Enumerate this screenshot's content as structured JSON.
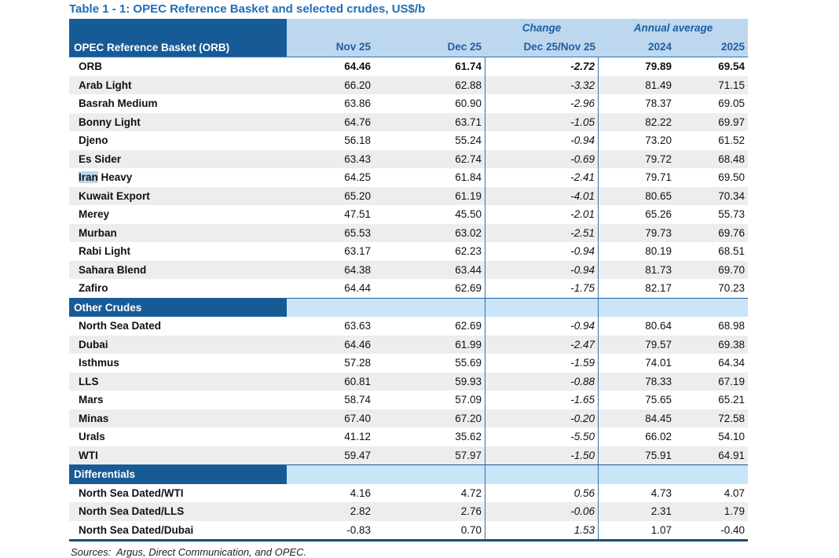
{
  "title": "Table 1 - 1: OPEC Reference Basket and selected crudes, US$/b",
  "header": {
    "label": "OPEC Reference Basket (ORB)",
    "group_change": "Change",
    "group_annual": "Annual average",
    "cols": [
      "Nov 25",
      "Dec 25",
      "Dec 25/Nov 25",
      "2024",
      "2025"
    ]
  },
  "sections": [
    {
      "name": "",
      "rows": [
        {
          "label": "ORB",
          "bold": true,
          "nov": "64.46",
          "dec": "61.74",
          "change": "-2.72",
          "y2024": "79.89",
          "y2025": "69.54"
        },
        {
          "label": "Arab Light",
          "nov": "66.20",
          "dec": "62.88",
          "change": "-3.32",
          "y2024": "81.49",
          "y2025": "71.15"
        },
        {
          "label": "Basrah Medium",
          "nov": "63.86",
          "dec": "60.90",
          "change": "-2.96",
          "y2024": "78.37",
          "y2025": "69.05"
        },
        {
          "label": "Bonny Light",
          "nov": "64.76",
          "dec": "63.71",
          "change": "-1.05",
          "y2024": "82.22",
          "y2025": "69.97"
        },
        {
          "label": "Djeno",
          "nov": "56.18",
          "dec": "55.24",
          "change": "-0.94",
          "y2024": "73.20",
          "y2025": "61.52"
        },
        {
          "label": "Es Sider",
          "nov": "63.43",
          "dec": "62.74",
          "change": "-0.69",
          "y2024": "79.72",
          "y2025": "68.48"
        },
        {
          "label": "Iran Heavy",
          "highlight": "Iran",
          "label_rest": " Heavy",
          "nov": "64.25",
          "dec": "61.84",
          "change": "-2.41",
          "y2024": "79.71",
          "y2025": "69.50"
        },
        {
          "label": "Kuwait Export",
          "nov": "65.20",
          "dec": "61.19",
          "change": "-4.01",
          "y2024": "80.65",
          "y2025": "70.34"
        },
        {
          "label": "Merey",
          "nov": "47.51",
          "dec": "45.50",
          "change": "-2.01",
          "y2024": "65.26",
          "y2025": "55.73"
        },
        {
          "label": "Murban",
          "nov": "65.53",
          "dec": "63.02",
          "change": "-2.51",
          "y2024": "79.73",
          "y2025": "69.76"
        },
        {
          "label": "Rabi Light",
          "nov": "63.17",
          "dec": "62.23",
          "change": "-0.94",
          "y2024": "80.19",
          "y2025": "68.51"
        },
        {
          "label": "Sahara Blend",
          "nov": "64.38",
          "dec": "63.44",
          "change": "-0.94",
          "y2024": "81.73",
          "y2025": "69.70"
        },
        {
          "label": "Zafiro",
          "nov": "64.44",
          "dec": "62.69",
          "change": "-1.75",
          "y2024": "82.17",
          "y2025": "70.23"
        }
      ]
    },
    {
      "name": "Other Crudes",
      "rows": [
        {
          "label": "North Sea Dated",
          "nov": "63.63",
          "dec": "62.69",
          "change": "-0.94",
          "y2024": "80.64",
          "y2025": "68.98"
        },
        {
          "label": "Dubai",
          "nov": "64.46",
          "dec": "61.99",
          "change": "-2.47",
          "y2024": "79.57",
          "y2025": "69.38"
        },
        {
          "label": "Isthmus",
          "nov": "57.28",
          "dec": "55.69",
          "change": "-1.59",
          "y2024": "74.01",
          "y2025": "64.34"
        },
        {
          "label": "LLS",
          "nov": "60.81",
          "dec": "59.93",
          "change": "-0.88",
          "y2024": "78.33",
          "y2025": "67.19"
        },
        {
          "label": "Mars",
          "nov": "58.74",
          "dec": "57.09",
          "change": "-1.65",
          "y2024": "75.65",
          "y2025": "65.21"
        },
        {
          "label": "Minas",
          "nov": "67.40",
          "dec": "67.20",
          "change": "-0.20",
          "y2024": "84.45",
          "y2025": "72.58"
        },
        {
          "label": "Urals",
          "nov": "41.12",
          "dec": "35.62",
          "change": "-5.50",
          "y2024": "66.02",
          "y2025": "54.10"
        },
        {
          "label": "WTI",
          "nov": "59.47",
          "dec": "57.97",
          "change": "-1.50",
          "y2024": "75.91",
          "y2025": "64.91"
        }
      ]
    },
    {
      "name": "Differentials",
      "rows": [
        {
          "label": "North Sea Dated/WTI",
          "nov": "4.16",
          "dec": "4.72",
          "change": "0.56",
          "y2024": "4.73",
          "y2025": "4.07"
        },
        {
          "label": "North Sea Dated/LLS",
          "nov": "2.82",
          "dec": "2.76",
          "change": "-0.06",
          "y2024": "2.31",
          "y2025": "1.79"
        },
        {
          "label": "North Sea Dated/Dubai",
          "nov": "-0.83",
          "dec": "0.70",
          "change": "1.53",
          "y2024": "1.07",
          "y2025": "-0.40"
        }
      ]
    }
  ],
  "footer": {
    "sources": "Sources:  Argus, Direct Communication, and OPEC."
  },
  "colors": {
    "title_blue": "#1F6DB6",
    "header_text_blue": "#1E5FA3",
    "dark_blue_cell": "#175B96",
    "header_band_blue": "#BDD7EE",
    "section_band_blue": "#CAE4F8",
    "rule_blue": "#2E74B5",
    "bottom_border": "#1C4F7C",
    "stripe_gray": "#EDEDED",
    "selection_highlight": "#B9D7F0"
  }
}
